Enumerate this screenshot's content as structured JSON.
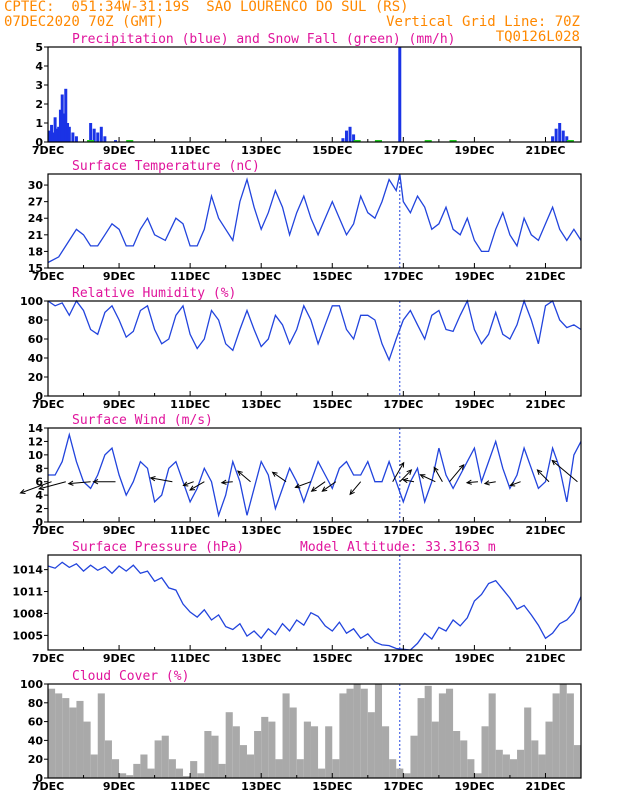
{
  "header": {
    "line1_left": "CPTEC:  051:34W-31:19S  SAO LOURENCO DO SUL (RS)",
    "line2_left": "07DEC2020 70Z (GMT)",
    "line2_right": "Vertical Grid Line: 70Z",
    "line3_right": "TQ0126L028"
  },
  "colors": {
    "header": "#ff8800",
    "title": "#e0149c",
    "line": "#2244dd",
    "precip": "#1a33e6",
    "snow": "#22cc22",
    "cloud": "#a9a9a9",
    "grid_line": "#2244dd"
  },
  "chart_data": [
    {
      "type": "bar",
      "title": "Precipitation (blue) and Snow Fall (green) (mm/h)",
      "x_tick_labels": [
        "7DEC",
        "9DEC",
        "11DEC",
        "13DEC",
        "15DEC",
        "17DEC",
        "19DEC",
        "21DEC"
      ],
      "ylim": [
        0,
        5
      ],
      "y_ticks": [
        0,
        1,
        2,
        3,
        4,
        5
      ],
      "precip_series": [
        {
          "day": 7.05,
          "v": 0.6
        },
        {
          "day": 7.1,
          "v": 0.9
        },
        {
          "day": 7.15,
          "v": 0.5
        },
        {
          "day": 7.2,
          "v": 1.3
        },
        {
          "day": 7.25,
          "v": 0.7
        },
        {
          "day": 7.3,
          "v": 0.8
        },
        {
          "day": 7.35,
          "v": 1.7
        },
        {
          "day": 7.4,
          "v": 2.5
        },
        {
          "day": 7.45,
          "v": 1.5
        },
        {
          "day": 7.5,
          "v": 2.8
        },
        {
          "day": 7.55,
          "v": 1.0
        },
        {
          "day": 7.6,
          "v": 0.8
        },
        {
          "day": 7.7,
          "v": 0.5
        },
        {
          "day": 7.8,
          "v": 0.3
        },
        {
          "day": 8.2,
          "v": 1.0
        },
        {
          "day": 8.3,
          "v": 0.7
        },
        {
          "day": 8.4,
          "v": 0.5
        },
        {
          "day": 8.5,
          "v": 0.8
        },
        {
          "day": 8.6,
          "v": 0.3
        },
        {
          "day": 8.9,
          "v": 0.1
        },
        {
          "day": 15.3,
          "v": 0.2
        },
        {
          "day": 15.4,
          "v": 0.6
        },
        {
          "day": 15.5,
          "v": 0.8
        },
        {
          "day": 15.6,
          "v": 0.4
        },
        {
          "day": 16.9,
          "v": 5.0
        },
        {
          "day": 21.2,
          "v": 0.3
        },
        {
          "day": 21.3,
          "v": 0.7
        },
        {
          "day": 21.4,
          "v": 1.0
        },
        {
          "day": 21.5,
          "v": 0.6
        },
        {
          "day": 21.6,
          "v": 0.3
        }
      ],
      "snow_segments": [
        [
          8.1,
          8.3
        ],
        [
          9.2,
          9.4
        ],
        [
          15.6,
          15.8
        ],
        [
          16.2,
          16.4
        ],
        [
          17.6,
          17.8
        ],
        [
          18.3,
          18.5
        ],
        [
          21.6,
          21.8
        ]
      ]
    },
    {
      "type": "line",
      "title": "Surface Temperature (nC)",
      "x_tick_labels": [
        "7DEC",
        "9DEC",
        "11DEC",
        "13DEC",
        "15DEC",
        "17DEC",
        "19DEC",
        "21DEC"
      ],
      "ylim": [
        15,
        32
      ],
      "y_ticks": [
        15,
        18,
        21,
        24,
        27,
        30
      ],
      "x": [
        7.0,
        7.3,
        7.6,
        7.8,
        8.0,
        8.2,
        8.4,
        8.6,
        8.8,
        9.0,
        9.2,
        9.4,
        9.6,
        9.8,
        10.0,
        10.3,
        10.6,
        10.8,
        11.0,
        11.2,
        11.4,
        11.6,
        11.8,
        12.0,
        12.2,
        12.4,
        12.6,
        12.8,
        13.0,
        13.2,
        13.4,
        13.6,
        13.8,
        14.0,
        14.2,
        14.4,
        14.6,
        14.8,
        15.0,
        15.2,
        15.4,
        15.6,
        15.8,
        16.0,
        16.2,
        16.4,
        16.6,
        16.8,
        16.9,
        17.0,
        17.2,
        17.4,
        17.6,
        17.8,
        18.0,
        18.2,
        18.4,
        18.6,
        18.8,
        19.0,
        19.2,
        19.4,
        19.6,
        19.8,
        20.0,
        20.2,
        20.4,
        20.6,
        20.8,
        21.0,
        21.2,
        21.4,
        21.6,
        21.8,
        22.0
      ],
      "y": [
        16,
        17,
        20,
        22,
        21,
        19,
        19,
        21,
        23,
        22,
        19,
        19,
        22,
        24,
        21,
        20,
        24,
        23,
        19,
        19,
        22,
        28,
        24,
        22,
        20,
        27,
        31,
        26,
        22,
        25,
        29,
        26,
        21,
        25,
        28,
        24,
        21,
        24,
        27,
        24,
        21,
        23,
        28,
        25,
        24,
        27,
        31,
        29,
        32,
        27,
        25,
        28,
        26,
        22,
        23,
        26,
        22,
        21,
        24,
        20,
        18,
        18,
        22,
        25,
        21,
        19,
        24,
        21,
        20,
        23,
        26,
        22,
        20,
        22,
        20
      ]
    },
    {
      "type": "line",
      "title": "Relative Humidity (%)",
      "x_tick_labels": [
        "7DEC",
        "9DEC",
        "11DEC",
        "13DEC",
        "15DEC",
        "17DEC",
        "19DEC",
        "21DEC"
      ],
      "ylim": [
        0,
        100
      ],
      "y_ticks": [
        0,
        20,
        40,
        60,
        80,
        100
      ],
      "x": [
        7.0,
        7.2,
        7.4,
        7.6,
        7.8,
        8.0,
        8.2,
        8.4,
        8.6,
        8.8,
        9.0,
        9.2,
        9.4,
        9.6,
        9.8,
        10.0,
        10.2,
        10.4,
        10.6,
        10.8,
        11.0,
        11.2,
        11.4,
        11.6,
        11.8,
        12.0,
        12.2,
        12.4,
        12.6,
        12.8,
        13.0,
        13.2,
        13.4,
        13.6,
        13.8,
        14.0,
        14.2,
        14.4,
        14.6,
        14.8,
        15.0,
        15.2,
        15.4,
        15.6,
        15.8,
        16.0,
        16.2,
        16.4,
        16.6,
        16.8,
        17.0,
        17.2,
        17.4,
        17.6,
        17.8,
        18.0,
        18.2,
        18.4,
        18.6,
        18.8,
        19.0,
        19.2,
        19.4,
        19.6,
        19.8,
        20.0,
        20.2,
        20.4,
        20.6,
        20.8,
        21.0,
        21.2,
        21.4,
        21.6,
        21.8,
        22.0
      ],
      "y": [
        100,
        95,
        98,
        85,
        100,
        90,
        70,
        65,
        88,
        95,
        80,
        62,
        68,
        90,
        95,
        70,
        55,
        60,
        85,
        95,
        65,
        50,
        60,
        90,
        80,
        55,
        48,
        70,
        90,
        70,
        52,
        60,
        85,
        75,
        55,
        70,
        95,
        80,
        55,
        75,
        95,
        95,
        70,
        60,
        85,
        85,
        80,
        55,
        38,
        60,
        80,
        90,
        75,
        60,
        85,
        90,
        70,
        68,
        85,
        100,
        70,
        55,
        65,
        88,
        65,
        60,
        75,
        100,
        80,
        55,
        95,
        100,
        80,
        72,
        75,
        70
      ]
    },
    {
      "type": "line",
      "title": "Surface Wind (m/s)",
      "x_tick_labels": [
        "7DEC",
        "9DEC",
        "11DEC",
        "13DEC",
        "15DEC",
        "17DEC",
        "19DEC",
        "21DEC"
      ],
      "ylim": [
        0,
        14
      ],
      "y_ticks": [
        0,
        2,
        4,
        6,
        8,
        10,
        12,
        14
      ],
      "x": [
        7.0,
        7.2,
        7.4,
        7.6,
        7.8,
        8.0,
        8.2,
        8.4,
        8.6,
        8.8,
        9.0,
        9.2,
        9.4,
        9.6,
        9.8,
        10.0,
        10.2,
        10.4,
        10.6,
        10.8,
        11.0,
        11.2,
        11.4,
        11.6,
        11.8,
        12.0,
        12.2,
        12.4,
        12.6,
        12.8,
        13.0,
        13.2,
        13.4,
        13.6,
        13.8,
        14.0,
        14.2,
        14.4,
        14.6,
        14.8,
        15.0,
        15.2,
        15.4,
        15.6,
        15.8,
        16.0,
        16.2,
        16.4,
        16.6,
        16.8,
        17.0,
        17.2,
        17.4,
        17.6,
        17.8,
        18.0,
        18.2,
        18.4,
        18.6,
        18.8,
        19.0,
        19.2,
        19.4,
        19.6,
        19.8,
        20.0,
        20.2,
        20.4,
        20.6,
        20.8,
        21.0,
        21.2,
        21.4,
        21.6,
        21.8,
        22.0
      ],
      "y": [
        7,
        7,
        9,
        13,
        9,
        6,
        5,
        7,
        10,
        11,
        7,
        4,
        6,
        9,
        8,
        3,
        4,
        8,
        9,
        6,
        3,
        5,
        8,
        6,
        1,
        4,
        9,
        6,
        1,
        5,
        9,
        7,
        2,
        5,
        8,
        6,
        3,
        6,
        9,
        7,
        5,
        8,
        9,
        7,
        7,
        9,
        6,
        6,
        9,
        6,
        3,
        6,
        8,
        3,
        6,
        11,
        7,
        5,
        7,
        9,
        11,
        6,
        9,
        12,
        8,
        5,
        7,
        11,
        8,
        5,
        6,
        11,
        8,
        3,
        10,
        12
      ],
      "wind_vectors": [
        {
          "day": 7.1,
          "speed": 6,
          "dir_deg": 200
        },
        {
          "day": 7.5,
          "speed": 5,
          "dir_deg": 195
        },
        {
          "day": 8.2,
          "speed": 4,
          "dir_deg": 185
        },
        {
          "day": 8.9,
          "speed": 4,
          "dir_deg": 180
        },
        {
          "day": 10.5,
          "speed": 4,
          "dir_deg": 170
        },
        {
          "day": 11.1,
          "speed": 2,
          "dir_deg": 200
        },
        {
          "day": 11.4,
          "speed": 3,
          "dir_deg": 210
        },
        {
          "day": 12.2,
          "speed": 2,
          "dir_deg": 185
        },
        {
          "day": 12.7,
          "speed": 3,
          "dir_deg": 140
        },
        {
          "day": 13.7,
          "speed": 3,
          "dir_deg": 145
        },
        {
          "day": 14.4,
          "speed": 3,
          "dir_deg": 200
        },
        {
          "day": 14.8,
          "speed": 3,
          "dir_deg": 215
        },
        {
          "day": 15.1,
          "speed": 3,
          "dir_deg": 215
        },
        {
          "day": 15.8,
          "speed": 3,
          "dir_deg": 230
        },
        {
          "day": 16.7,
          "speed": 4,
          "dir_deg": 60
        },
        {
          "day": 16.9,
          "speed": 3,
          "dir_deg": 45
        },
        {
          "day": 17.3,
          "speed": 2,
          "dir_deg": 170
        },
        {
          "day": 17.9,
          "speed": 3,
          "dir_deg": 155
        },
        {
          "day": 18.1,
          "speed": 3,
          "dir_deg": 120
        },
        {
          "day": 18.3,
          "speed": 4,
          "dir_deg": 50
        },
        {
          "day": 19.1,
          "speed": 2,
          "dir_deg": 185
        },
        {
          "day": 19.6,
          "speed": 2,
          "dir_deg": 190
        },
        {
          "day": 20.3,
          "speed": 2,
          "dir_deg": 200
        },
        {
          "day": 21.1,
          "speed": 3,
          "dir_deg": 135
        },
        {
          "day": 21.9,
          "speed": 6,
          "dir_deg": 140
        }
      ]
    },
    {
      "type": "line",
      "title": "Surface Pressure (hPa)",
      "annotation": "Model Altitude: 33.3163 m",
      "x_tick_labels": [
        "7DEC",
        "9DEC",
        "11DEC",
        "13DEC",
        "15DEC",
        "17DEC",
        "19DEC",
        "21DEC"
      ],
      "ylim": [
        1003,
        1016
      ],
      "y_ticks": [
        1005,
        1008,
        1011,
        1014
      ],
      "x": [
        7.0,
        7.2,
        7.4,
        7.6,
        7.8,
        8.0,
        8.2,
        8.4,
        8.6,
        8.8,
        9.0,
        9.2,
        9.4,
        9.6,
        9.8,
        10.0,
        10.2,
        10.4,
        10.6,
        10.8,
        11.0,
        11.2,
        11.4,
        11.6,
        11.8,
        12.0,
        12.2,
        12.4,
        12.6,
        12.8,
        13.0,
        13.2,
        13.4,
        13.6,
        13.8,
        14.0,
        14.2,
        14.4,
        14.6,
        14.8,
        15.0,
        15.2,
        15.4,
        15.6,
        15.8,
        16.0,
        16.2,
        16.4,
        16.6,
        16.8,
        17.0,
        17.2,
        17.4,
        17.6,
        17.8,
        18.0,
        18.2,
        18.4,
        18.6,
        18.8,
        19.0,
        19.2,
        19.4,
        19.6,
        19.8,
        20.0,
        20.2,
        20.4,
        20.6,
        20.8,
        21.0,
        21.2,
        21.4,
        21.6,
        21.8,
        22.0
      ],
      "y": [
        1014.5,
        1014.2,
        1015,
        1014.3,
        1014.8,
        1013.8,
        1014.6,
        1013.9,
        1014.4,
        1013.5,
        1014.5,
        1013.8,
        1014.6,
        1013.5,
        1013.8,
        1012.4,
        1012.9,
        1011.5,
        1011.2,
        1009.3,
        1008.2,
        1007.5,
        1008.5,
        1007.1,
        1007.8,
        1006.2,
        1005.8,
        1006.6,
        1004.9,
        1005.6,
        1004.6,
        1005.9,
        1005.1,
        1006.6,
        1005.6,
        1007.1,
        1006.4,
        1008.1,
        1007.6,
        1006.3,
        1005.6,
        1006.8,
        1005.3,
        1005.9,
        1004.6,
        1005.2,
        1004.1,
        1003.7,
        1003.6,
        1003.2,
        1003.1,
        1002.7,
        1003.9,
        1005.3,
        1004.5,
        1006.1,
        1005.6,
        1007.1,
        1006.3,
        1007.4,
        1009.7,
        1010.6,
        1012.1,
        1012.5,
        1011.3,
        1010.1,
        1008.6,
        1009.1,
        1007.8,
        1006.4,
        1004.6,
        1005.3,
        1006.6,
        1007.1,
        1008.2,
        1010.3
      ]
    },
    {
      "type": "bar",
      "title": "Cloud Cover (%)",
      "x_tick_labels": [
        "7DEC",
        "9DEC",
        "11DEC",
        "13DEC",
        "15DEC",
        "17DEC",
        "19DEC",
        "21DEC"
      ],
      "ylim": [
        0,
        100
      ],
      "y_ticks": [
        0,
        20,
        40,
        60,
        80,
        100
      ],
      "x": [
        7.0,
        7.2,
        7.4,
        7.6,
        7.8,
        8.0,
        8.2,
        8.4,
        8.6,
        8.8,
        9.0,
        9.2,
        9.4,
        9.6,
        9.8,
        10.0,
        10.2,
        10.4,
        10.6,
        10.8,
        11.0,
        11.2,
        11.4,
        11.6,
        11.8,
        12.0,
        12.2,
        12.4,
        12.6,
        12.8,
        13.0,
        13.2,
        13.4,
        13.6,
        13.8,
        14.0,
        14.2,
        14.4,
        14.6,
        14.8,
        15.0,
        15.2,
        15.4,
        15.6,
        15.8,
        16.0,
        16.2,
        16.4,
        16.6,
        16.8,
        17.0,
        17.2,
        17.4,
        17.6,
        17.8,
        18.0,
        18.2,
        18.4,
        18.6,
        18.8,
        19.0,
        19.2,
        19.4,
        19.6,
        19.8,
        20.0,
        20.2,
        20.4,
        20.6,
        20.8,
        21.0,
        21.2,
        21.4,
        21.6,
        21.8,
        22.0
      ],
      "values": [
        95,
        90,
        85,
        75,
        82,
        60,
        25,
        90,
        40,
        20,
        5,
        3,
        15,
        25,
        10,
        40,
        45,
        20,
        10,
        2,
        18,
        5,
        50,
        45,
        15,
        70,
        55,
        35,
        25,
        50,
        65,
        60,
        20,
        90,
        75,
        20,
        60,
        55,
        10,
        55,
        20,
        90,
        95,
        100,
        95,
        70,
        100,
        55,
        20,
        10,
        5,
        45,
        85,
        98,
        60,
        90,
        95,
        50,
        40,
        20,
        5,
        55,
        90,
        30,
        25,
        20,
        30,
        75,
        40,
        25,
        60,
        90,
        100,
        90,
        35,
        70
      ]
    }
  ]
}
